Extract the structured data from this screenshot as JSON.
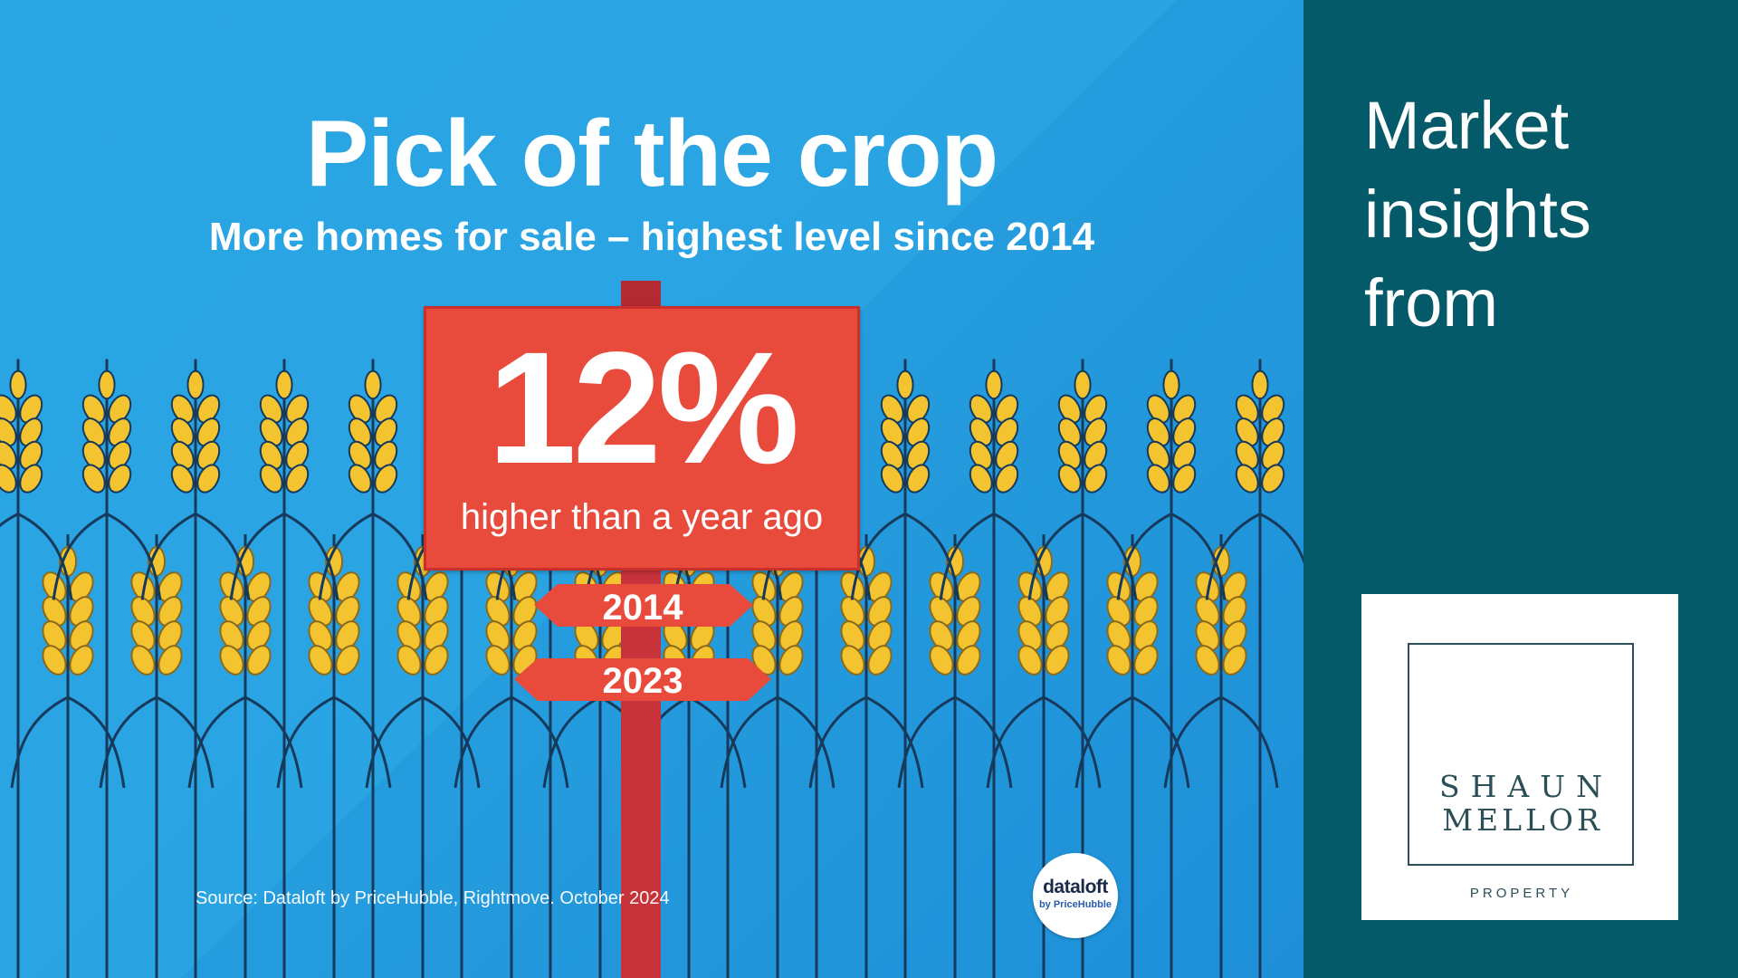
{
  "headline": "Pick of the crop",
  "subheadline": "More homes for sale – highest level since 2014",
  "stat": {
    "value": "12%",
    "caption": "higher than a year ago"
  },
  "arrows": {
    "top": "2014",
    "bottom": "2023"
  },
  "source": "Source: Dataloft by PriceHubble, Rightmove. October 2024",
  "dataloft_badge": {
    "name": "dataloft",
    "sub": "by PriceHubble"
  },
  "side_panel": {
    "lines": [
      "Market",
      "insights",
      "from"
    ]
  },
  "logo": {
    "line1": "SHAUN",
    "line2": "MELLOR",
    "line3": "PROPERTY"
  },
  "colors": {
    "background_blue": "#2ba6e4",
    "sign_red": "#e84a3c",
    "post_red": "#c8323a",
    "wheat_gold": "#f4c430",
    "wheat_dark": "#8a6a1a",
    "stalk_navy": "#163a5c",
    "panel_teal": "#045a68"
  },
  "icons": [
    "wheat-stalk-icon",
    "signpost-icon",
    "arrow-sign-icon"
  ]
}
